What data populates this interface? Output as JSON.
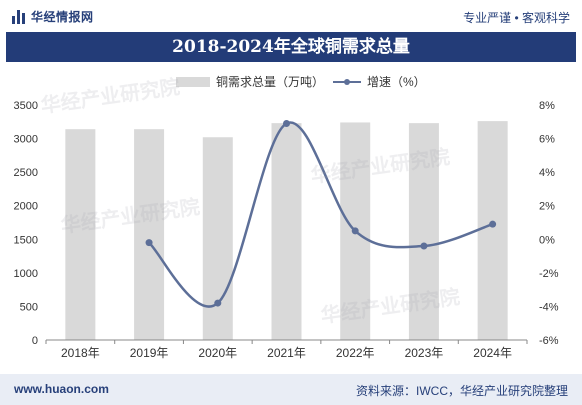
{
  "header": {
    "brand": "华经情报网",
    "slogan": "专业严谨 • 客观科学"
  },
  "title": "2018-2024年全球铜需求总量",
  "footer": {
    "website": "www.huaon.com",
    "source": "资料来源：IWCC，华经产业研究院整理"
  },
  "watermark": "华经产业研究院",
  "colors": {
    "bar": "#d9d9d9",
    "line": "#5d6f98",
    "brand": "#233c78"
  },
  "chart_data": {
    "type": "bar",
    "categories": [
      "2018年",
      "2019年",
      "2020年",
      "2021年",
      "2022年",
      "2023年",
      "2024年"
    ],
    "series": [
      {
        "name": "铜需求总量（万吨）",
        "type": "bar",
        "axis": "left",
        "values": [
          3140,
          3140,
          3020,
          3230,
          3240,
          3230,
          3260
        ]
      },
      {
        "name": "增速（%）",
        "type": "line",
        "axis": "right",
        "values": [
          null,
          -0.2,
          -3.8,
          6.9,
          0.5,
          -0.4,
          0.9
        ]
      }
    ],
    "ylim_left": [
      0,
      3500
    ],
    "yticks_left": [
      "0",
      "500",
      "1000",
      "1500",
      "2000",
      "2500",
      "3000",
      "3500"
    ],
    "ylim_right": [
      -6,
      8
    ],
    "yticks_right": [
      "-6%",
      "-4%",
      "-2%",
      "0%",
      "2%",
      "4%",
      "6%",
      "8%"
    ],
    "legend_position": "top",
    "grid": false
  }
}
